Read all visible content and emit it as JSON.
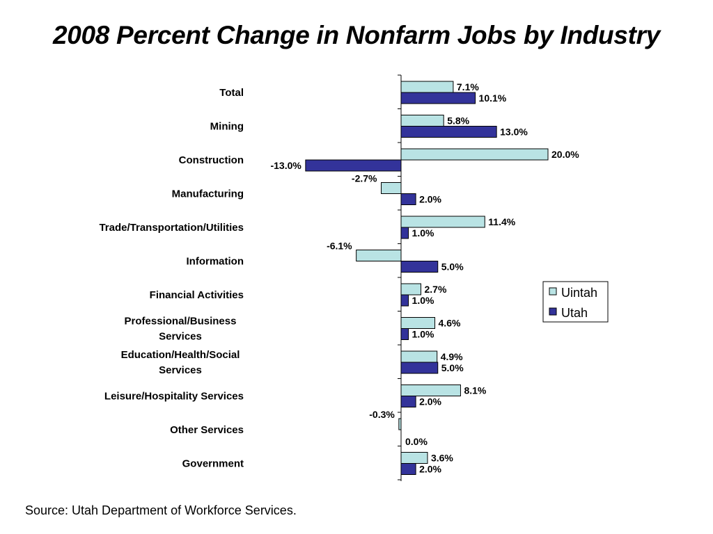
{
  "title": "2008 Percent Change in Nonfarm Jobs by Industry",
  "source": "Source: Utah Department of Workforce Services.",
  "colors": {
    "uintah": "#b9e3e4",
    "utah": "#33339a",
    "bar_stroke": "#000000"
  },
  "chart_data": {
    "type": "bar",
    "orientation": "horizontal",
    "title": "2008 Percent Change in Nonfarm Jobs by Industry",
    "xlabel": "",
    "ylabel": "",
    "xlim": [
      -13.0,
      20.0
    ],
    "grid": false,
    "legend_position": "right",
    "categories": [
      [
        "Total"
      ],
      [
        "Mining"
      ],
      [
        "Construction"
      ],
      [
        "Manufacturing"
      ],
      [
        "Trade/Transportation/Utilities"
      ],
      [
        "Information"
      ],
      [
        "Financial Activities"
      ],
      [
        "Professional/Business",
        "Services"
      ],
      [
        "Education/Health/Social",
        "Services"
      ],
      [
        "Leisure/Hospitality Services"
      ],
      [
        "Other Services"
      ],
      [
        "Government"
      ]
    ],
    "series": [
      {
        "name": "Uintah",
        "values": [
          7.1,
          5.8,
          20.0,
          -2.7,
          11.4,
          -6.1,
          2.7,
          4.6,
          4.9,
          8.1,
          -0.3,
          3.6
        ],
        "labels": [
          "7.1%",
          "5.8%",
          "20.0%",
          "-2.7%",
          "11.4%",
          "-6.1%",
          "2.7%",
          "4.6%",
          "4.9%",
          "8.1%",
          "-0.3%",
          "3.6%"
        ]
      },
      {
        "name": "Utah",
        "values": [
          10.1,
          13.0,
          -13.0,
          2.0,
          1.0,
          5.0,
          1.0,
          1.0,
          5.0,
          2.0,
          0.0,
          2.0
        ],
        "labels": [
          "10.1%",
          "13.0%",
          "-13.0%",
          "2.0%",
          "1.0%",
          "5.0%",
          "1.0%",
          "1.0%",
          "5.0%",
          "2.0%",
          "0.0%",
          "2.0%"
        ]
      }
    ]
  }
}
